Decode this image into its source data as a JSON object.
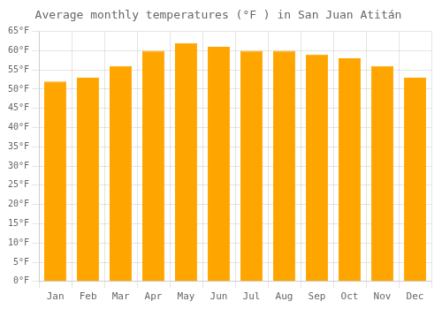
{
  "chart_data": {
    "type": "bar",
    "title": "Average monthly temperatures (°F ) in San Juan Atitán",
    "categories": [
      "Jan",
      "Feb",
      "Mar",
      "Apr",
      "May",
      "Jun",
      "Jul",
      "Aug",
      "Sep",
      "Oct",
      "Nov",
      "Dec"
    ],
    "values": [
      52,
      53,
      56,
      60,
      62,
      61,
      60,
      60,
      59,
      58,
      56,
      53
    ],
    "color": "#FFA500",
    "ylim": [
      0,
      65
    ],
    "yticks": [
      {
        "value": 0,
        "label": "0°F"
      },
      {
        "value": 5,
        "label": "5°F"
      },
      {
        "value": 10,
        "label": "10°F"
      },
      {
        "value": 15,
        "label": "15°F"
      },
      {
        "value": 20,
        "label": "20°F"
      },
      {
        "value": 25,
        "label": "25°F"
      },
      {
        "value": 30,
        "label": "30°F"
      },
      {
        "value": 35,
        "label": "35°F"
      },
      {
        "value": 40,
        "label": "40°F"
      },
      {
        "value": 45,
        "label": "45°F"
      },
      {
        "value": 50,
        "label": "50°F"
      },
      {
        "value": 55,
        "label": "55°F"
      },
      {
        "value": 60,
        "label": "60°F"
      },
      {
        "value": 65,
        "label": "65°F"
      }
    ],
    "grid": true
  }
}
